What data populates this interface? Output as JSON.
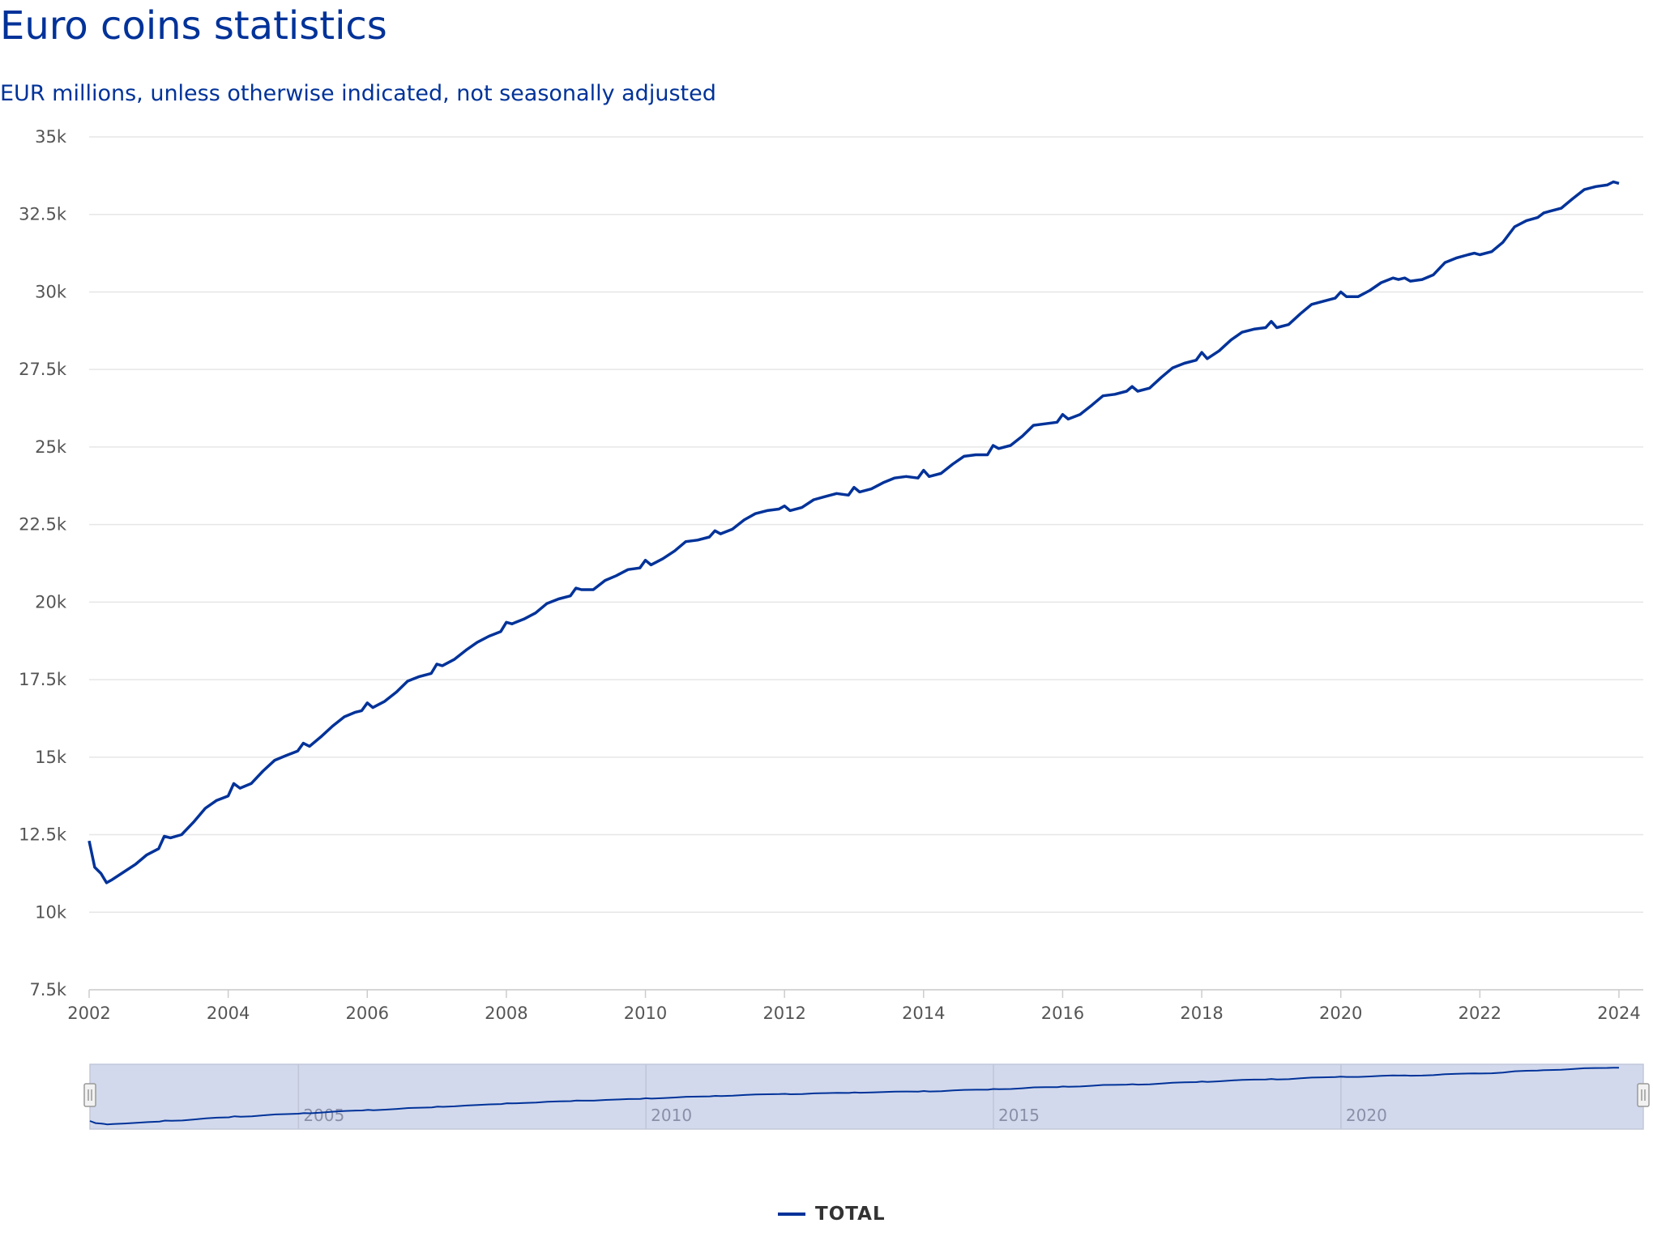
{
  "chart_data": {
    "type": "line",
    "title": "Euro coins statistics",
    "subtitle": "EUR millions, unless otherwise indicated, not seasonally adjusted",
    "xlabel": "",
    "ylabel": "",
    "xlim": [
      2002.0,
      2024.35
    ],
    "ylim": [
      7500,
      35000
    ],
    "y_ticks": [
      7500,
      10000,
      12500,
      15000,
      17500,
      20000,
      22500,
      25000,
      27500,
      30000,
      32500,
      35000
    ],
    "y_tick_labels": [
      "7.5k",
      "10k",
      "12.5k",
      "15k",
      "17.5k",
      "20k",
      "22.5k",
      "25k",
      "27.5k",
      "30k",
      "32.5k",
      "35k"
    ],
    "x_ticks": [
      2002,
      2004,
      2006,
      2008,
      2010,
      2012,
      2014,
      2016,
      2018,
      2020,
      2022,
      2024
    ],
    "x_tick_labels": [
      "2002",
      "2004",
      "2006",
      "2008",
      "2010",
      "2012",
      "2014",
      "2016",
      "2018",
      "2020",
      "2022",
      "2024"
    ],
    "navigator_ticks": [
      2005,
      2010,
      2015,
      2020
    ],
    "navigator_tick_labels": [
      "2005",
      "2010",
      "2015",
      "2020"
    ],
    "grid": true,
    "legend": "bottom-center",
    "series": [
      {
        "name": "TOTAL",
        "color": "#003299",
        "points": [
          [
            2002.0,
            12300
          ],
          [
            2002.08,
            11450
          ],
          [
            2002.17,
            11250
          ],
          [
            2002.25,
            10950
          ],
          [
            2002.33,
            11050
          ],
          [
            2002.5,
            11300
          ],
          [
            2002.67,
            11550
          ],
          [
            2002.83,
            11850
          ],
          [
            2003.0,
            12050
          ],
          [
            2003.08,
            12450
          ],
          [
            2003.17,
            12400
          ],
          [
            2003.33,
            12500
          ],
          [
            2003.5,
            12900
          ],
          [
            2003.67,
            13350
          ],
          [
            2003.83,
            13600
          ],
          [
            2004.0,
            13750
          ],
          [
            2004.08,
            14150
          ],
          [
            2004.17,
            14000
          ],
          [
            2004.33,
            14150
          ],
          [
            2004.5,
            14550
          ],
          [
            2004.67,
            14900
          ],
          [
            2004.83,
            15050
          ],
          [
            2005.0,
            15200
          ],
          [
            2005.08,
            15450
          ],
          [
            2005.17,
            15350
          ],
          [
            2005.33,
            15650
          ],
          [
            2005.5,
            16000
          ],
          [
            2005.67,
            16300
          ],
          [
            2005.83,
            16450
          ],
          [
            2005.92,
            16500
          ],
          [
            2006.0,
            16750
          ],
          [
            2006.08,
            16600
          ],
          [
            2006.25,
            16800
          ],
          [
            2006.42,
            17100
          ],
          [
            2006.58,
            17450
          ],
          [
            2006.75,
            17600
          ],
          [
            2006.92,
            17700
          ],
          [
            2007.0,
            18000
          ],
          [
            2007.08,
            17950
          ],
          [
            2007.25,
            18150
          ],
          [
            2007.42,
            18450
          ],
          [
            2007.58,
            18700
          ],
          [
            2007.75,
            18900
          ],
          [
            2007.92,
            19050
          ],
          [
            2008.0,
            19350
          ],
          [
            2008.08,
            19300
          ],
          [
            2008.25,
            19450
          ],
          [
            2008.42,
            19650
          ],
          [
            2008.58,
            19950
          ],
          [
            2008.75,
            20100
          ],
          [
            2008.92,
            20200
          ],
          [
            2009.0,
            20450
          ],
          [
            2009.08,
            20400
          ],
          [
            2009.25,
            20400
          ],
          [
            2009.42,
            20700
          ],
          [
            2009.58,
            20850
          ],
          [
            2009.75,
            21050
          ],
          [
            2009.92,
            21100
          ],
          [
            2010.0,
            21350
          ],
          [
            2010.08,
            21200
          ],
          [
            2010.25,
            21400
          ],
          [
            2010.42,
            21650
          ],
          [
            2010.58,
            21950
          ],
          [
            2010.75,
            22000
          ],
          [
            2010.92,
            22100
          ],
          [
            2011.0,
            22300
          ],
          [
            2011.08,
            22200
          ],
          [
            2011.25,
            22350
          ],
          [
            2011.42,
            22650
          ],
          [
            2011.58,
            22850
          ],
          [
            2011.75,
            22950
          ],
          [
            2011.92,
            23000
          ],
          [
            2012.0,
            23100
          ],
          [
            2012.08,
            22950
          ],
          [
            2012.25,
            23050
          ],
          [
            2012.42,
            23300
          ],
          [
            2012.58,
            23400
          ],
          [
            2012.75,
            23500
          ],
          [
            2012.92,
            23450
          ],
          [
            2013.0,
            23700
          ],
          [
            2013.08,
            23550
          ],
          [
            2013.25,
            23650
          ],
          [
            2013.42,
            23850
          ],
          [
            2013.58,
            24000
          ],
          [
            2013.75,
            24050
          ],
          [
            2013.92,
            24000
          ],
          [
            2014.0,
            24250
          ],
          [
            2014.08,
            24050
          ],
          [
            2014.25,
            24150
          ],
          [
            2014.42,
            24450
          ],
          [
            2014.58,
            24700
          ],
          [
            2014.75,
            24750
          ],
          [
            2014.92,
            24750
          ],
          [
            2015.0,
            25050
          ],
          [
            2015.08,
            24950
          ],
          [
            2015.25,
            25050
          ],
          [
            2015.42,
            25350
          ],
          [
            2015.58,
            25700
          ],
          [
            2015.75,
            25750
          ],
          [
            2015.92,
            25800
          ],
          [
            2016.0,
            26050
          ],
          [
            2016.08,
            25900
          ],
          [
            2016.25,
            26050
          ],
          [
            2016.42,
            26350
          ],
          [
            2016.58,
            26650
          ],
          [
            2016.75,
            26700
          ],
          [
            2016.92,
            26800
          ],
          [
            2017.0,
            26950
          ],
          [
            2017.08,
            26800
          ],
          [
            2017.25,
            26900
          ],
          [
            2017.42,
            27250
          ],
          [
            2017.58,
            27550
          ],
          [
            2017.75,
            27700
          ],
          [
            2017.92,
            27800
          ],
          [
            2018.0,
            28050
          ],
          [
            2018.08,
            27850
          ],
          [
            2018.25,
            28100
          ],
          [
            2018.42,
            28450
          ],
          [
            2018.58,
            28700
          ],
          [
            2018.75,
            28800
          ],
          [
            2018.92,
            28850
          ],
          [
            2019.0,
            29050
          ],
          [
            2019.08,
            28850
          ],
          [
            2019.25,
            28950
          ],
          [
            2019.42,
            29300
          ],
          [
            2019.58,
            29600
          ],
          [
            2019.75,
            29700
          ],
          [
            2019.92,
            29800
          ],
          [
            2020.0,
            30000
          ],
          [
            2020.08,
            29850
          ],
          [
            2020.25,
            29850
          ],
          [
            2020.42,
            30050
          ],
          [
            2020.58,
            30300
          ],
          [
            2020.75,
            30450
          ],
          [
            2020.83,
            30400
          ],
          [
            2020.92,
            30450
          ],
          [
            2021.0,
            30350
          ],
          [
            2021.17,
            30400
          ],
          [
            2021.33,
            30550
          ],
          [
            2021.5,
            30950
          ],
          [
            2021.67,
            31100
          ],
          [
            2021.83,
            31200
          ],
          [
            2021.92,
            31250
          ],
          [
            2022.0,
            31200
          ],
          [
            2022.17,
            31300
          ],
          [
            2022.33,
            31600
          ],
          [
            2022.5,
            32100
          ],
          [
            2022.67,
            32300
          ],
          [
            2022.83,
            32400
          ],
          [
            2022.92,
            32550
          ],
          [
            2023.0,
            32600
          ],
          [
            2023.17,
            32700
          ],
          [
            2023.33,
            33000
          ],
          [
            2023.5,
            33300
          ],
          [
            2023.67,
            33400
          ],
          [
            2023.83,
            33450
          ],
          [
            2023.92,
            33550
          ],
          [
            2024.0,
            33500
          ]
        ]
      }
    ]
  },
  "legend": {
    "label": "TOTAL"
  }
}
